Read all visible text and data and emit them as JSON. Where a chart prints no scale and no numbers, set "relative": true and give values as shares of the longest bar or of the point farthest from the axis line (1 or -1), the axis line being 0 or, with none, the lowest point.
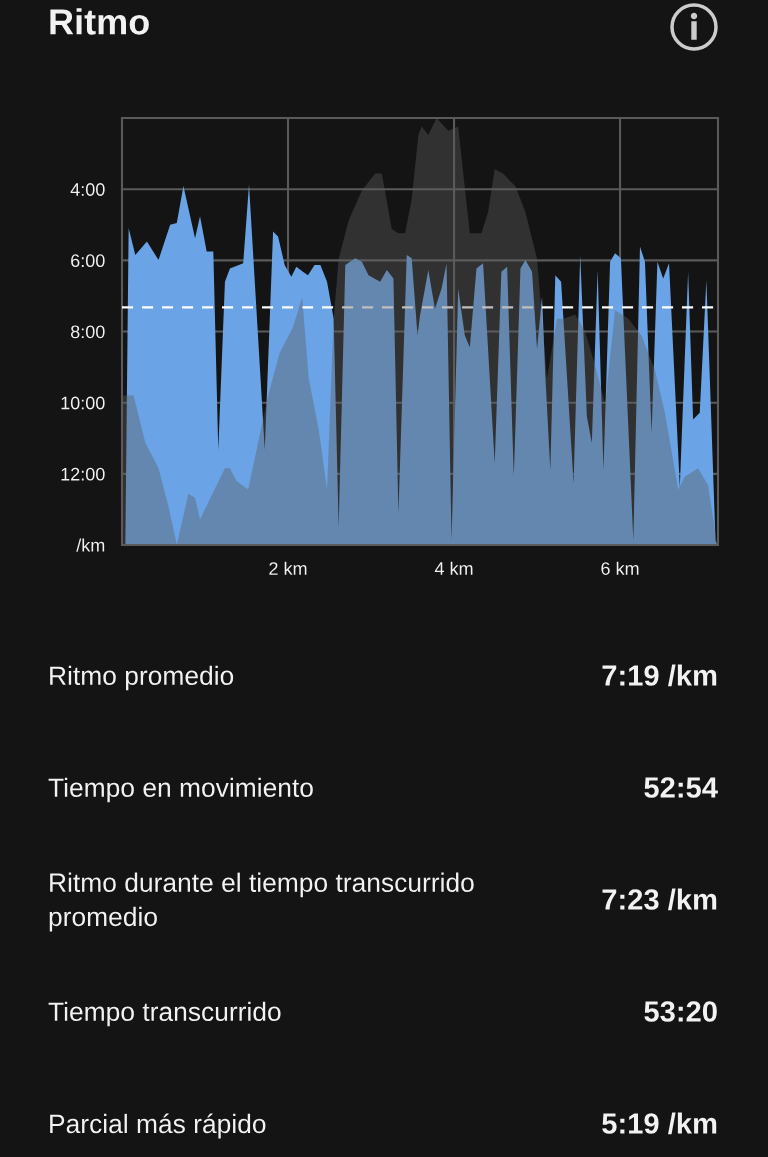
{
  "chart_data": [
    {
      "type": "area",
      "title": "Ritmo",
      "series": [
        {
          "color": "#6aa3e6",
          "x": [
            0.04,
            0.08,
            0.16,
            0.3,
            0.44,
            0.58,
            0.66,
            0.74,
            0.88,
            0.94,
            1.02,
            1.1,
            1.16,
            1.24,
            1.3,
            1.46,
            1.53,
            1.72,
            1.82,
            1.88,
            1.96,
            2.04,
            2.1,
            2.18,
            2.24,
            2.32,
            2.39,
            2.47,
            2.55,
            2.61,
            2.69,
            2.81,
            2.89,
            2.97,
            3.11,
            3.19,
            3.27,
            3.33,
            3.43,
            3.49,
            3.56,
            3.59,
            3.69,
            3.77,
            3.85,
            3.91,
            3.97,
            4.05,
            4.13,
            4.19,
            4.27,
            4.35,
            4.49,
            4.57,
            4.64,
            4.72,
            4.8,
            4.86,
            4.94,
            5.0,
            5.06,
            5.1,
            5.16,
            5.22,
            5.29,
            5.44,
            5.52,
            5.6,
            5.66,
            5.73,
            5.8,
            5.88,
            5.94,
            6.01,
            6.16,
            6.24,
            6.3,
            6.38,
            6.45,
            6.52,
            6.59,
            6.72,
            6.82,
            6.88,
            6.96,
            7.04,
            7.15,
            7.17
          ],
          "values": [
            14.0,
            5.09,
            5.85,
            5.47,
            5.99,
            5.0,
            4.95,
            3.91,
            5.38,
            4.76,
            5.75,
            5.75,
            11.32,
            6.6,
            6.23,
            6.08,
            3.87,
            11.32,
            5.19,
            5.33,
            6.13,
            6.46,
            6.18,
            6.32,
            6.42,
            6.13,
            6.13,
            6.6,
            7.64,
            13.49,
            6.13,
            5.94,
            6.04,
            6.42,
            6.6,
            6.27,
            6.51,
            13.11,
            5.85,
            5.94,
            8.11,
            7.55,
            6.27,
            7.36,
            6.79,
            6.08,
            13.87,
            6.79,
            8.11,
            8.44,
            6.23,
            6.08,
            11.7,
            6.32,
            6.18,
            12.08,
            6.23,
            5.99,
            6.32,
            8.49,
            7.03,
            9.25,
            11.89,
            6.42,
            6.6,
            12.26,
            5.85,
            10.38,
            11.13,
            6.27,
            11.89,
            6.04,
            5.8,
            5.94,
            13.87,
            5.61,
            6.04,
            10.85,
            6.04,
            6.51,
            6.08,
            12.36,
            6.32,
            10.47,
            10.28,
            6.56,
            13.87,
            14.0
          ]
        }
      ],
      "xlim": [
        0,
        7.18
      ],
      "xticks": [
        {
          "value": 2,
          "label": "2 km"
        },
        {
          "value": 4,
          "label": "4 km"
        },
        {
          "value": 6,
          "label": "6 km"
        }
      ],
      "ylim": [
        14,
        2
      ],
      "yticks": [
        {
          "value": 4,
          "label": "4:00"
        },
        {
          "value": 6,
          "label": "6:00"
        },
        {
          "value": 8,
          "label": "8:00"
        },
        {
          "value": 10,
          "label": "10:00"
        },
        {
          "value": 12,
          "label": "12:00"
        },
        {
          "value": 14,
          "label": "/km"
        }
      ],
      "ref_lines": [
        {
          "axis": "y",
          "value": 7.32,
          "color": "#ffffff",
          "line_style": "dashed"
        }
      ],
      "grid": true
    },
    {
      "type": "area",
      "relative": true,
      "xlim": [
        0,
        7.18
      ],
      "x": [
        0.0,
        0.14,
        0.28,
        0.44,
        0.56,
        0.66,
        0.8,
        0.88,
        0.94,
        1.24,
        1.3,
        1.38,
        1.52,
        1.64,
        1.76,
        1.9,
        2.06,
        2.17,
        2.25,
        2.37,
        2.47,
        2.55,
        2.61,
        2.73,
        2.89,
        3.05,
        3.13,
        3.25,
        3.33,
        3.41,
        3.49,
        3.57,
        3.61,
        3.69,
        3.79,
        3.93,
        4.05,
        4.19,
        4.33,
        4.41,
        4.49,
        4.59,
        4.74,
        4.86,
        5.0,
        5.12,
        5.24,
        5.32,
        5.46,
        5.58,
        5.7,
        5.82,
        5.94,
        6.1,
        6.26,
        6.42,
        6.54,
        6.7,
        6.78,
        6.94,
        7.06,
        7.17
      ],
      "series": [
        {
          "color": "#5c5c5c",
          "values": [
            0.35,
            0.35,
            0.24,
            0.18,
            0.09,
            0,
            0.12,
            0.11,
            0.06,
            0.18,
            0.18,
            0.15,
            0.13,
            0.24,
            0.35,
            0.45,
            0.51,
            0.58,
            0.39,
            0.27,
            0.13,
            0.53,
            0.67,
            0.76,
            0.83,
            0.87,
            0.87,
            0.74,
            0.73,
            0.73,
            0.81,
            0.96,
            0.98,
            0.96,
            1.0,
            0.97,
            0.98,
            0.73,
            0.73,
            0.78,
            0.88,
            0.87,
            0.84,
            0.78,
            0.67,
            0.39,
            0.53,
            0.53,
            0.54,
            0.5,
            0.42,
            0.33,
            0.55,
            0.53,
            0.49,
            0.41,
            0.31,
            0.13,
            0.16,
            0.18,
            0.14,
            0
          ]
        }
      ]
    },
    {
      "type": "other",
      "annotations": [
        "Ritmo promedio",
        "7:19 /km",
        "Tiempo en movimiento",
        "52:54",
        "Ritmo durante el tiempo transcurrido\npromedio",
        "7:23 /km",
        "Tiempo transcurrido",
        "53:20",
        "Parcial más rápido",
        "5:19 /km"
      ]
    }
  ]
}
